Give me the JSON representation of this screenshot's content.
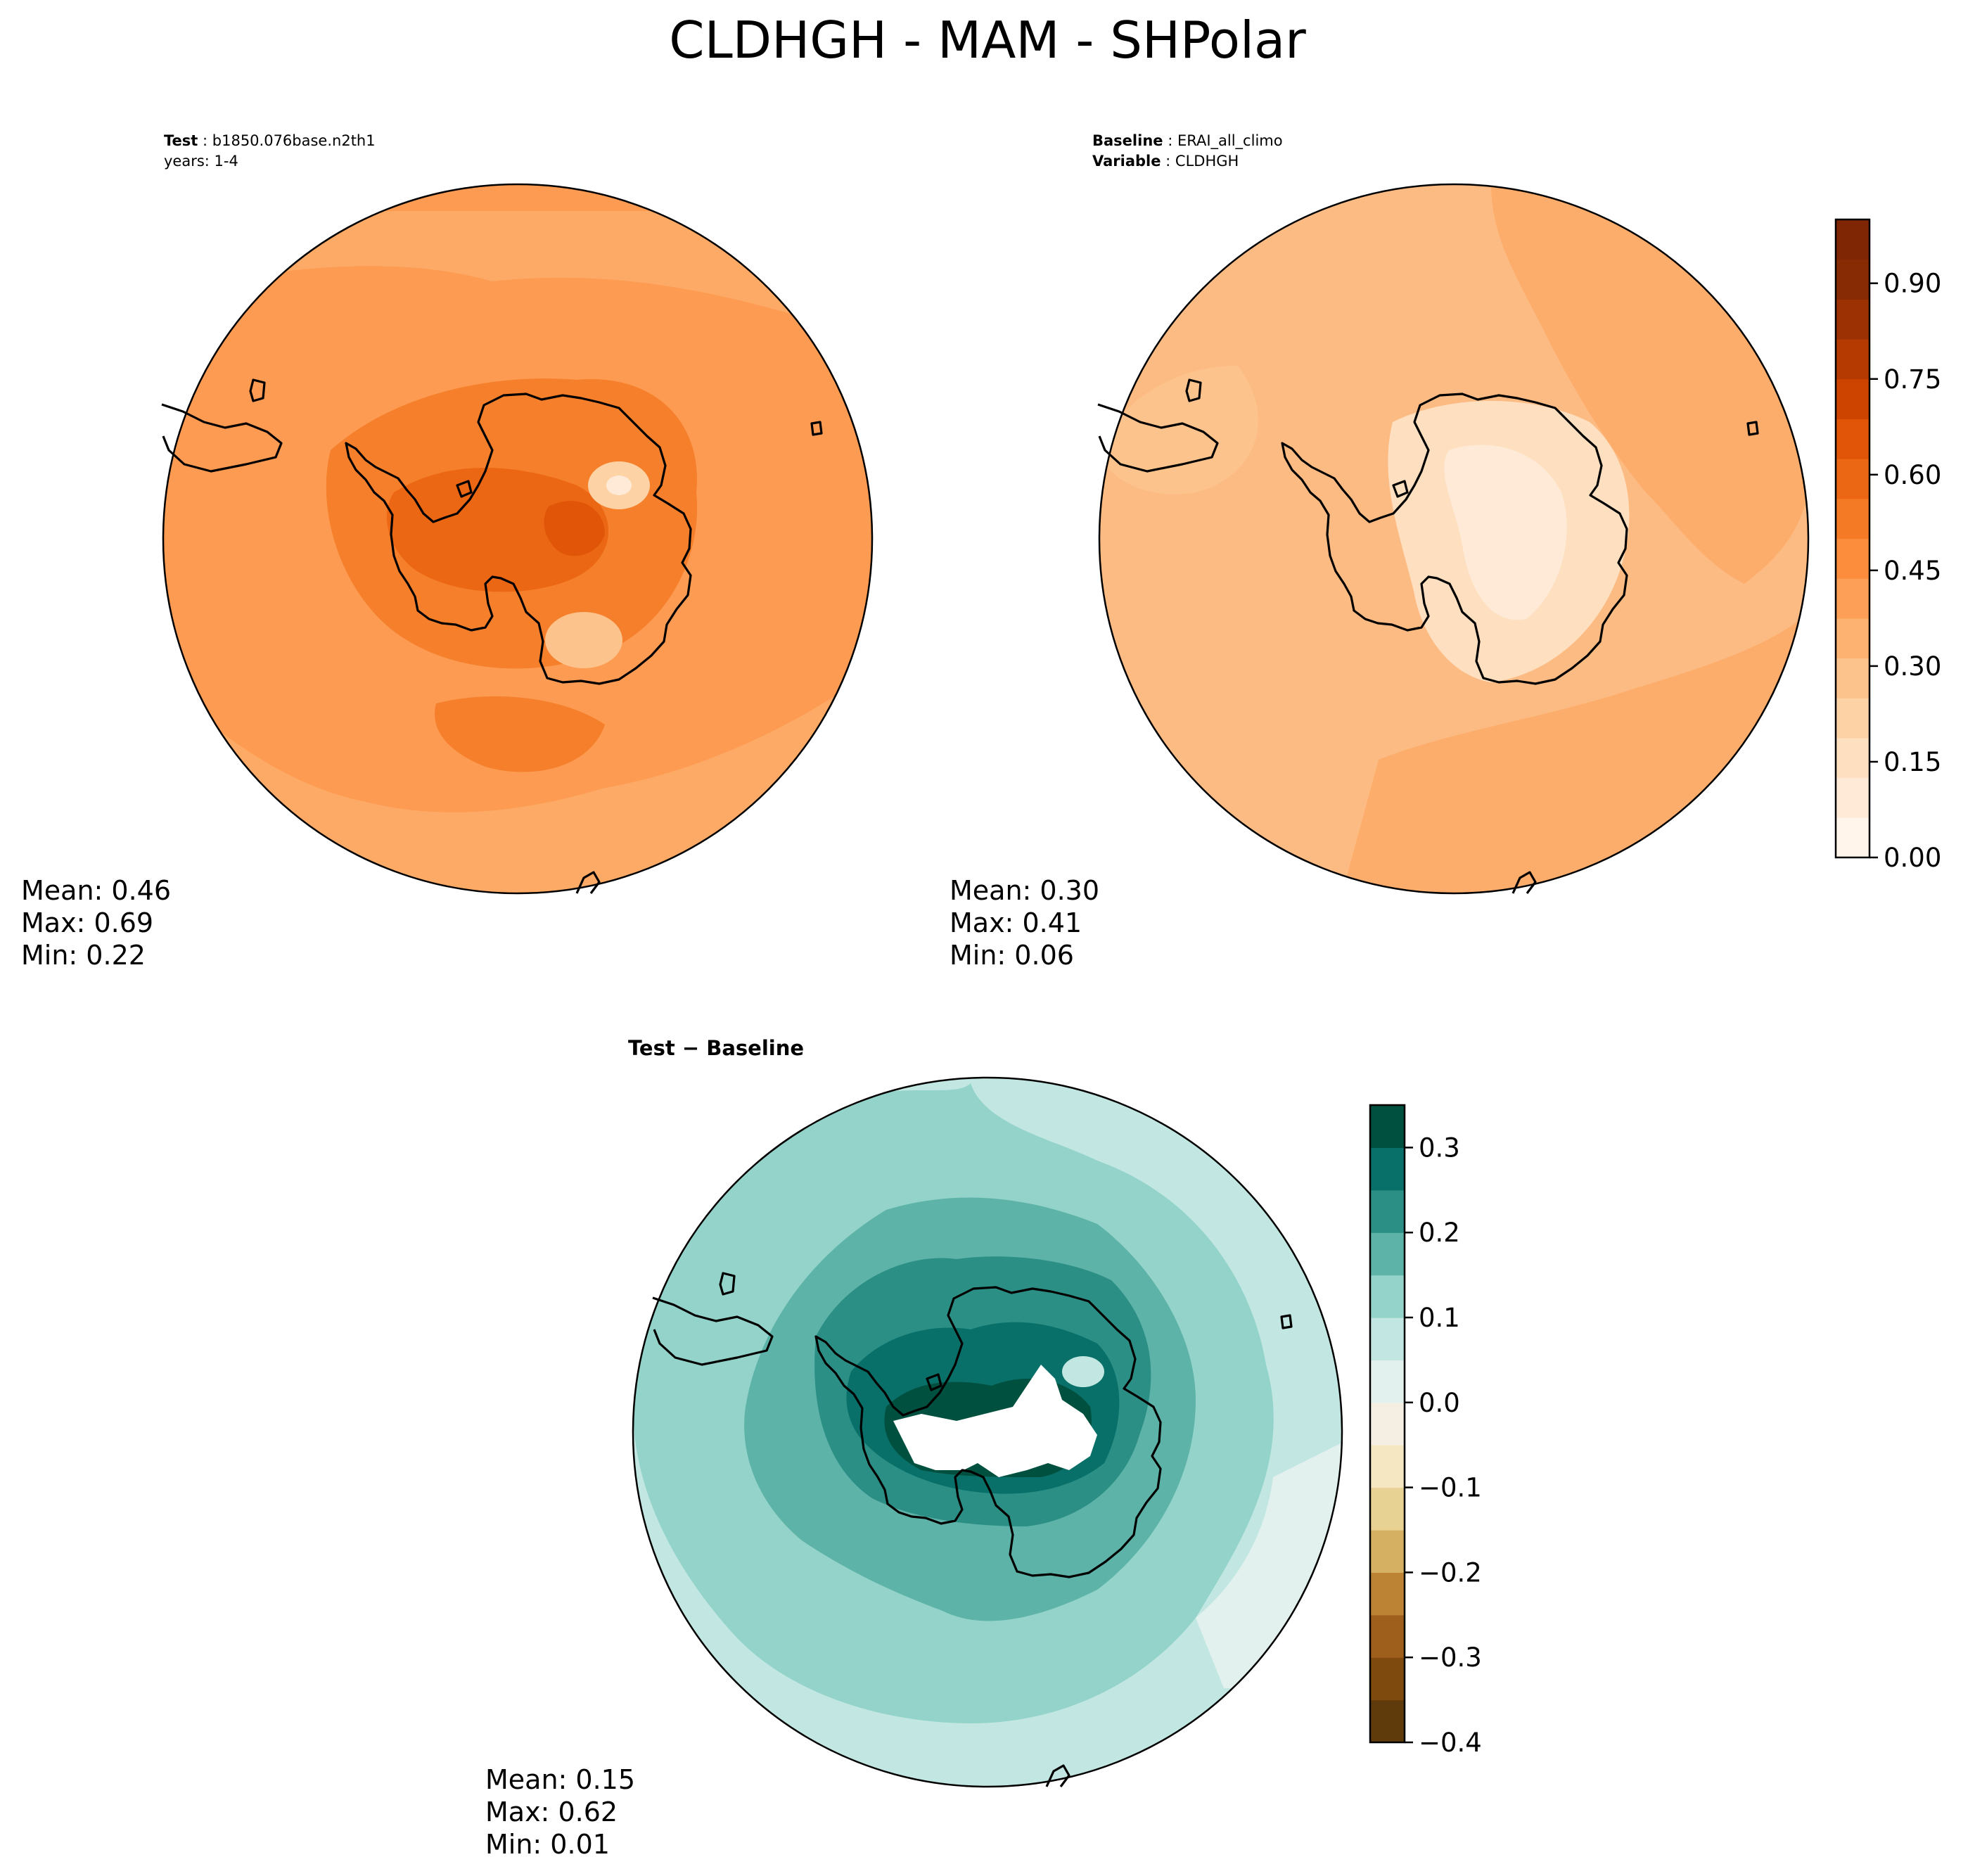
{
  "figure_title": "CLDHGH - MAM - SHPolar",
  "colors": {
    "test_fill": "#fd9b52",
    "baseline_fill": "#fdbb84",
    "diff_fill": "#c2e7e2",
    "coastline": "#000000"
  },
  "panels": {
    "test": {
      "label": "Test",
      "name": "b1850.076base.n2th1",
      "years": "years: 1-4",
      "stats": {
        "mean": "Mean:  0.46",
        "max": "Max:  0.69",
        "min": "Min:  0.22"
      }
    },
    "baseline": {
      "label": "Baseline",
      "name": "ERAI_all_climo",
      "variable_label": "Variable",
      "variable": "CLDHGH",
      "stats": {
        "mean": "Mean:  0.30",
        "max": "Max:  0.41",
        "min": "Min:  0.06"
      }
    },
    "diff": {
      "title": "Test − Baseline",
      "stats": {
        "mean": "Mean:  0.15",
        "max": "Max:  0.62",
        "min": "Min:  0.01"
      }
    }
  },
  "chart_data": [
    {
      "type": "heatmap",
      "title": "Test",
      "projection": "South Polar Stereographic",
      "variable": "CLDHGH",
      "season": "MAM",
      "mean": 0.46,
      "max": 0.69,
      "min": 0.22
    },
    {
      "type": "heatmap",
      "title": "Baseline",
      "projection": "South Polar Stereographic",
      "variable": "CLDHGH",
      "season": "MAM",
      "mean": 0.3,
      "max": 0.41,
      "min": 0.06
    },
    {
      "type": "heatmap",
      "title": "Test - Baseline",
      "projection": "South Polar Stereographic",
      "variable": "CLDHGH",
      "season": "MAM",
      "mean": 0.15,
      "max": 0.62,
      "min": 0.01
    }
  ],
  "colorbars": {
    "main": {
      "range": [
        0,
        1
      ],
      "ticks": [
        0.0,
        0.15,
        0.3,
        0.45,
        0.6,
        0.75,
        0.9
      ],
      "tick_labels": [
        "0.00",
        "0.15",
        "0.30",
        "0.45",
        "0.60",
        "0.75",
        "0.90"
      ],
      "colors": [
        "#fff5eb",
        "#feead6",
        "#fee0c1",
        "#fdd2a5",
        "#fdc38c",
        "#fdb272",
        "#fd9f56",
        "#fb8d3d",
        "#f57a26",
        "#ec6714",
        "#e05508",
        "#cd4401",
        "#b53a02",
        "#9c3203",
        "#862b04",
        "#7f2704"
      ]
    },
    "diff": {
      "range": [
        -0.4,
        0.35
      ],
      "ticks": [
        -0.4,
        -0.3,
        -0.2,
        -0.1,
        0.0,
        0.1,
        0.2,
        0.3
      ],
      "tick_labels": [
        "−0.4",
        "−0.3",
        "−0.2",
        "−0.1",
        "0.0",
        "0.1",
        "0.2",
        "0.3"
      ],
      "colors": [
        "#5f3a0b",
        "#7f4a0d",
        "#9e5f1c",
        "#bd8334",
        "#d5b063",
        "#e7d294",
        "#f4e7c1",
        "#f4efe2",
        "#e3f1ee",
        "#c2e7e2",
        "#93d3c9",
        "#5db3a8",
        "#2c8f85",
        "#087068",
        "#00503f"
      ]
    }
  }
}
